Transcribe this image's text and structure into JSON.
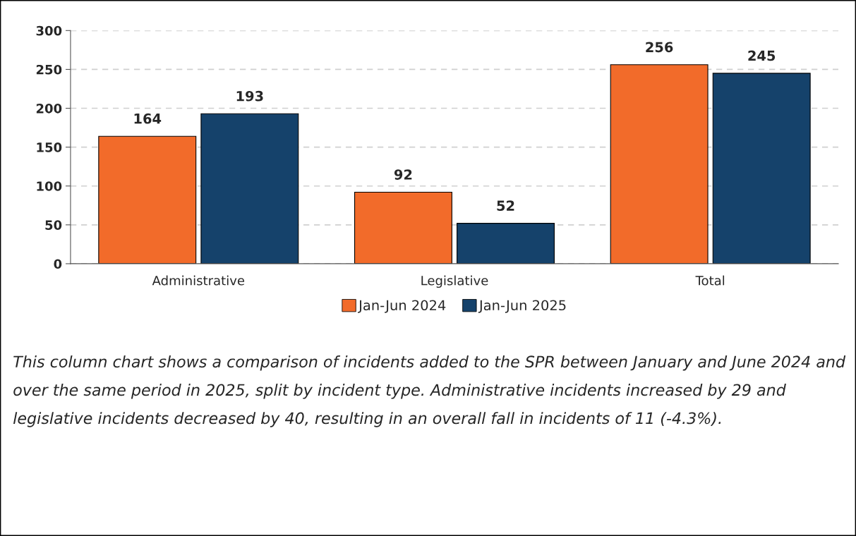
{
  "chart_data": {
    "type": "bar",
    "categories": [
      "Administrative",
      "Legislative",
      "Total"
    ],
    "series": [
      {
        "name": "Jan-Jun 2024",
        "color": "#f26b2a",
        "values": [
          164,
          92,
          256
        ]
      },
      {
        "name": "Jan-Jun 2025",
        "color": "#15426b",
        "values": [
          193,
          52,
          245
        ]
      }
    ],
    "ylim": [
      0,
      300
    ],
    "yticks": [
      0,
      50,
      100,
      150,
      200,
      250,
      300
    ],
    "grid": "y",
    "legend": "bottom",
    "data_labels": true,
    "annotations": [
      "This column chart shows a comparison of incidents added to the SPR between January and June 2024 and over the same period in 2025, split by incident type. Administrative incidents increased by 29 and legislative incidents decreased by 40, resulting in an overall fall in incidents of 11 (-4.3%)."
    ]
  }
}
